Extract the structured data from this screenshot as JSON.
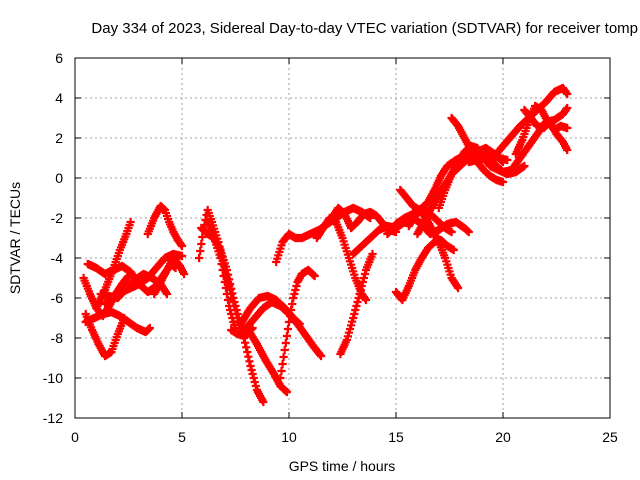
{
  "chart_data": {
    "type": "scatter",
    "title": "Day 334 of 2023, Sidereal Day-to-day VTEC variation (SDTVAR) for receiver tomp",
    "xlabel": "GPS time / hours",
    "ylabel": "SDTVAR / TECUs",
    "xlim": [
      0,
      25
    ],
    "ylim": [
      -12,
      6
    ],
    "xticks": [
      "0",
      "5",
      "10",
      "15",
      "20",
      "25"
    ],
    "yticks": [
      "-12",
      "-10",
      "-8",
      "-6",
      "-4",
      "-2",
      "0",
      "2",
      "4",
      "6"
    ],
    "grid": true,
    "marker": "plus",
    "color": "#ff0000",
    "series": [
      {
        "x": [
          0.4,
          0.7,
          1.0,
          1.3,
          1.6,
          1.9,
          2.2,
          2.5
        ],
        "y": [
          -5.0,
          -5.8,
          -6.5,
          -6.9,
          -6.4,
          -5.8,
          -5.3,
          -4.9
        ]
      },
      {
        "x": [
          0.5,
          0.8,
          1.1,
          1.4,
          1.7,
          2.0,
          2.3
        ],
        "y": [
          -6.8,
          -7.6,
          -8.3,
          -8.9,
          -8.7,
          -7.8,
          -7.0
        ]
      },
      {
        "x": [
          0.5,
          0.9,
          1.3,
          1.7,
          2.1,
          2.5,
          2.9,
          3.3,
          3.5
        ],
        "y": [
          -7.2,
          -7.0,
          -6.8,
          -6.7,
          -6.9,
          -7.2,
          -7.5,
          -7.7,
          -7.5
        ]
      },
      {
        "x": [
          0.6,
          1.0,
          1.4,
          1.8,
          2.2,
          2.6,
          3.0,
          3.4,
          3.8,
          4.1,
          4.5,
          4.7
        ],
        "y": [
          -4.3,
          -4.5,
          -4.8,
          -4.6,
          -4.4,
          -4.7,
          -5.3,
          -5.7,
          -5.4,
          -4.9,
          -4.3,
          -4.5
        ]
      },
      {
        "x": [
          1.0,
          1.4,
          1.8,
          2.1,
          2.4,
          2.6
        ],
        "y": [
          -6.5,
          -5.6,
          -4.5,
          -3.6,
          -2.8,
          -2.2
        ]
      },
      {
        "x": [
          1.2,
          1.6,
          2.0,
          2.4,
          2.8,
          3.2,
          3.6,
          4.0,
          4.3
        ],
        "y": [
          -5.8,
          -5.9,
          -6.0,
          -5.5,
          -5.1,
          -4.8,
          -5.0,
          -5.3,
          -5.8
        ]
      },
      {
        "x": [
          1.4,
          1.8,
          2.2,
          2.6,
          3.0,
          3.4,
          3.8,
          4.2,
          4.6,
          5.0
        ],
        "y": [
          -6.3,
          -6.0,
          -5.7,
          -5.5,
          -5.3,
          -5.0,
          -4.5,
          -4.0,
          -3.8,
          -3.9
        ]
      },
      {
        "x": [
          3.4,
          3.7,
          4.0,
          4.2,
          4.4,
          4.6,
          4.8,
          5.0
        ],
        "y": [
          -2.8,
          -2.0,
          -1.4,
          -1.6,
          -2.2,
          -2.7,
          -3.1,
          -3.4
        ]
      },
      {
        "x": [
          3.7,
          4.0,
          4.3,
          4.6,
          4.9,
          5.1
        ],
        "y": [
          -5.8,
          -5.2,
          -4.6,
          -4.0,
          -4.4,
          -4.8
        ]
      },
      {
        "x": [
          5.8,
          6.0,
          6.2,
          6.4,
          6.7,
          7.0,
          7.3,
          7.6,
          7.9,
          8.2,
          8.5,
          8.8
        ],
        "y": [
          -4.0,
          -2.6,
          -1.6,
          -2.2,
          -3.2,
          -4.6,
          -5.8,
          -7.0,
          -8.0,
          -9.4,
          -10.6,
          -11.2
        ]
      },
      {
        "x": [
          5.9,
          6.2,
          6.5,
          6.8,
          7.1,
          7.4,
          7.7,
          8.0,
          8.3
        ],
        "y": [
          -2.5,
          -2.8,
          -3.0,
          -3.6,
          -4.6,
          -6.0,
          -7.2,
          -7.8,
          -7.5
        ]
      },
      {
        "x": [
          6.2,
          6.5,
          6.8,
          7.0,
          7.2,
          7.4,
          7.6,
          7.9,
          8.1
        ],
        "y": [
          -2.2,
          -3.0,
          -4.0,
          -5.2,
          -6.4,
          -7.2,
          -7.8,
          -7.9,
          -7.5
        ]
      },
      {
        "x": [
          7.3,
          7.6,
          8.0,
          8.4,
          8.8,
          9.2,
          9.6,
          10.0,
          10.4,
          10.8,
          11.2,
          11.5
        ],
        "y": [
          -7.6,
          -7.8,
          -7.5,
          -7.0,
          -6.5,
          -6.2,
          -6.4,
          -6.8,
          -7.3,
          -7.9,
          -8.5,
          -8.9
        ]
      },
      {
        "x": [
          8.1,
          8.5,
          8.9,
          9.3,
          9.6,
          9.9
        ],
        "y": [
          -7.6,
          -8.3,
          -9.1,
          -9.8,
          -10.4,
          -10.7
        ]
      },
      {
        "x": [
          7.8,
          8.2,
          8.6,
          9.0,
          9.4,
          9.8,
          10.2,
          10.5
        ],
        "y": [
          -7.2,
          -6.5,
          -6.0,
          -5.9,
          -6.1,
          -6.5,
          -7.0,
          -7.3
        ]
      },
      {
        "x": [
          9.6,
          9.8,
          10.0,
          10.2,
          10.4,
          10.6,
          10.9,
          11.2
        ],
        "y": [
          -10.0,
          -8.6,
          -7.2,
          -6.0,
          -5.2,
          -4.8,
          -4.6,
          -4.9
        ]
      },
      {
        "x": [
          9.4,
          9.7,
          10.0,
          10.3,
          10.6,
          11.0,
          11.4,
          11.8,
          12.2,
          12.6,
          13.0,
          13.4,
          13.8
        ],
        "y": [
          -4.2,
          -3.2,
          -2.8,
          -3.0,
          -3.0,
          -2.8,
          -2.6,
          -2.3,
          -2.0,
          -1.7,
          -1.5,
          -1.7,
          -2.0
        ]
      },
      {
        "x": [
          11.3,
          11.6,
          11.9,
          12.2,
          12.5,
          12.8,
          13.1,
          13.4,
          13.6
        ],
        "y": [
          -3.0,
          -2.5,
          -2.0,
          -2.2,
          -3.0,
          -4.0,
          -5.0,
          -5.8,
          -6.1
        ]
      },
      {
        "x": [
          12.0,
          12.3,
          12.6,
          12.9,
          13.2,
          13.5,
          13.8,
          14.1,
          14.4,
          14.7,
          15.0
        ],
        "y": [
          -2.0,
          -1.5,
          -1.8,
          -2.5,
          -2.2,
          -1.8,
          -1.7,
          -1.9,
          -2.3,
          -2.6,
          -2.7
        ]
      },
      {
        "x": [
          12.4,
          12.7,
          13.0,
          13.3,
          13.6,
          13.9
        ],
        "y": [
          -8.8,
          -8.1,
          -7.0,
          -5.8,
          -4.6,
          -3.8
        ]
      },
      {
        "x": [
          13.0,
          13.4,
          13.8,
          14.2,
          14.6,
          15.0,
          15.4,
          15.8,
          16.2,
          16.6,
          17.0,
          17.4,
          17.8,
          18.2,
          18.4
        ],
        "y": [
          -3.8,
          -3.4,
          -3.0,
          -2.6,
          -2.4,
          -2.5,
          -2.2,
          -2.0,
          -2.3,
          -2.8,
          -2.6,
          -2.3,
          -2.2,
          -2.5,
          -2.7
        ]
      },
      {
        "x": [
          14.6,
          15.0,
          15.4,
          15.8,
          16.2,
          16.6,
          17.0,
          17.3,
          17.6
        ],
        "y": [
          -2.8,
          -2.3,
          -2.0,
          -1.8,
          -1.6,
          -1.8,
          -2.2,
          -2.5,
          -2.7
        ]
      },
      {
        "x": [
          15.0,
          15.3,
          15.6,
          15.9,
          16.2,
          16.5,
          16.8,
          17.1,
          17.4,
          17.7
        ],
        "y": [
          -5.7,
          -6.1,
          -5.4,
          -4.6,
          -4.0,
          -3.5,
          -3.2,
          -3.1,
          -3.4,
          -3.6
        ]
      },
      {
        "x": [
          15.2,
          15.5,
          15.8,
          16.1,
          16.4,
          16.7,
          17.0,
          17.3,
          17.6,
          17.9
        ],
        "y": [
          -0.6,
          -1.0,
          -1.4,
          -1.6,
          -2.0,
          -2.6,
          -3.2,
          -4.0,
          -5.0,
          -5.5
        ]
      },
      {
        "x": [
          15.6,
          15.9,
          16.2,
          16.5,
          16.8,
          17.1,
          17.4,
          17.8,
          18.2,
          18.6,
          19.0,
          19.4,
          19.8,
          20.2
        ],
        "y": [
          -2.4,
          -1.9,
          -1.5,
          -1.2,
          -0.6,
          0.1,
          0.6,
          0.9,
          1.1,
          1.2,
          1.4,
          1.2,
          1.0,
          0.9
        ]
      },
      {
        "x": [
          16.0,
          16.4,
          16.8,
          17.2,
          17.6,
          18.0,
          18.4,
          18.8,
          19.2,
          19.6,
          20.0
        ],
        "y": [
          -2.8,
          -2.0,
          -1.2,
          -0.5,
          0.2,
          0.6,
          1.0,
          1.3,
          1.5,
          1.2,
          0.8
        ]
      },
      {
        "x": [
          17.0,
          17.3,
          17.6,
          17.9,
          18.2,
          18.5,
          18.8,
          19.1,
          19.4,
          19.8,
          20.2,
          20.6,
          21.0
        ],
        "y": [
          -1.5,
          -0.6,
          0.2,
          0.8,
          1.3,
          1.6,
          1.5,
          1.0,
          0.6,
          0.4,
          0.2,
          0.3,
          0.6
        ]
      },
      {
        "x": [
          17.6,
          17.9,
          18.2,
          18.5,
          18.8,
          19.1,
          19.4,
          19.7,
          20.0
        ],
        "y": [
          3.0,
          2.6,
          2.0,
          1.4,
          0.8,
          0.4,
          0.1,
          -0.1,
          -0.2
        ]
      },
      {
        "x": [
          18.4,
          18.8,
          19.2,
          19.6,
          20.0,
          20.4,
          20.8,
          21.2,
          21.6,
          22.0,
          22.4,
          22.8,
          23.0
        ],
        "y": [
          0.8,
          0.9,
          1.0,
          0.7,
          0.3,
          0.4,
          1.0,
          1.6,
          2.2,
          2.8,
          2.9,
          3.2,
          3.5
        ]
      },
      {
        "x": [
          19.6,
          20.0,
          20.4,
          20.8,
          21.2,
          21.6,
          22.0,
          22.4,
          22.8,
          23.0
        ],
        "y": [
          1.1,
          1.6,
          2.1,
          2.6,
          3.0,
          3.4,
          3.8,
          4.3,
          4.5,
          4.2
        ]
      },
      {
        "x": [
          20.6,
          20.9,
          21.2,
          21.5,
          21.8,
          22.1,
          22.4,
          22.7,
          23.0
        ],
        "y": [
          1.2,
          1.9,
          2.8,
          3.6,
          3.4,
          2.8,
          2.4,
          2.6,
          2.5
        ]
      },
      {
        "x": [
          21.0,
          21.3,
          21.6,
          21.9,
          22.2,
          22.5,
          22.8,
          23.0
        ],
        "y": [
          3.4,
          3.0,
          2.6,
          2.5,
          2.8,
          2.2,
          1.8,
          1.4
        ]
      }
    ]
  }
}
